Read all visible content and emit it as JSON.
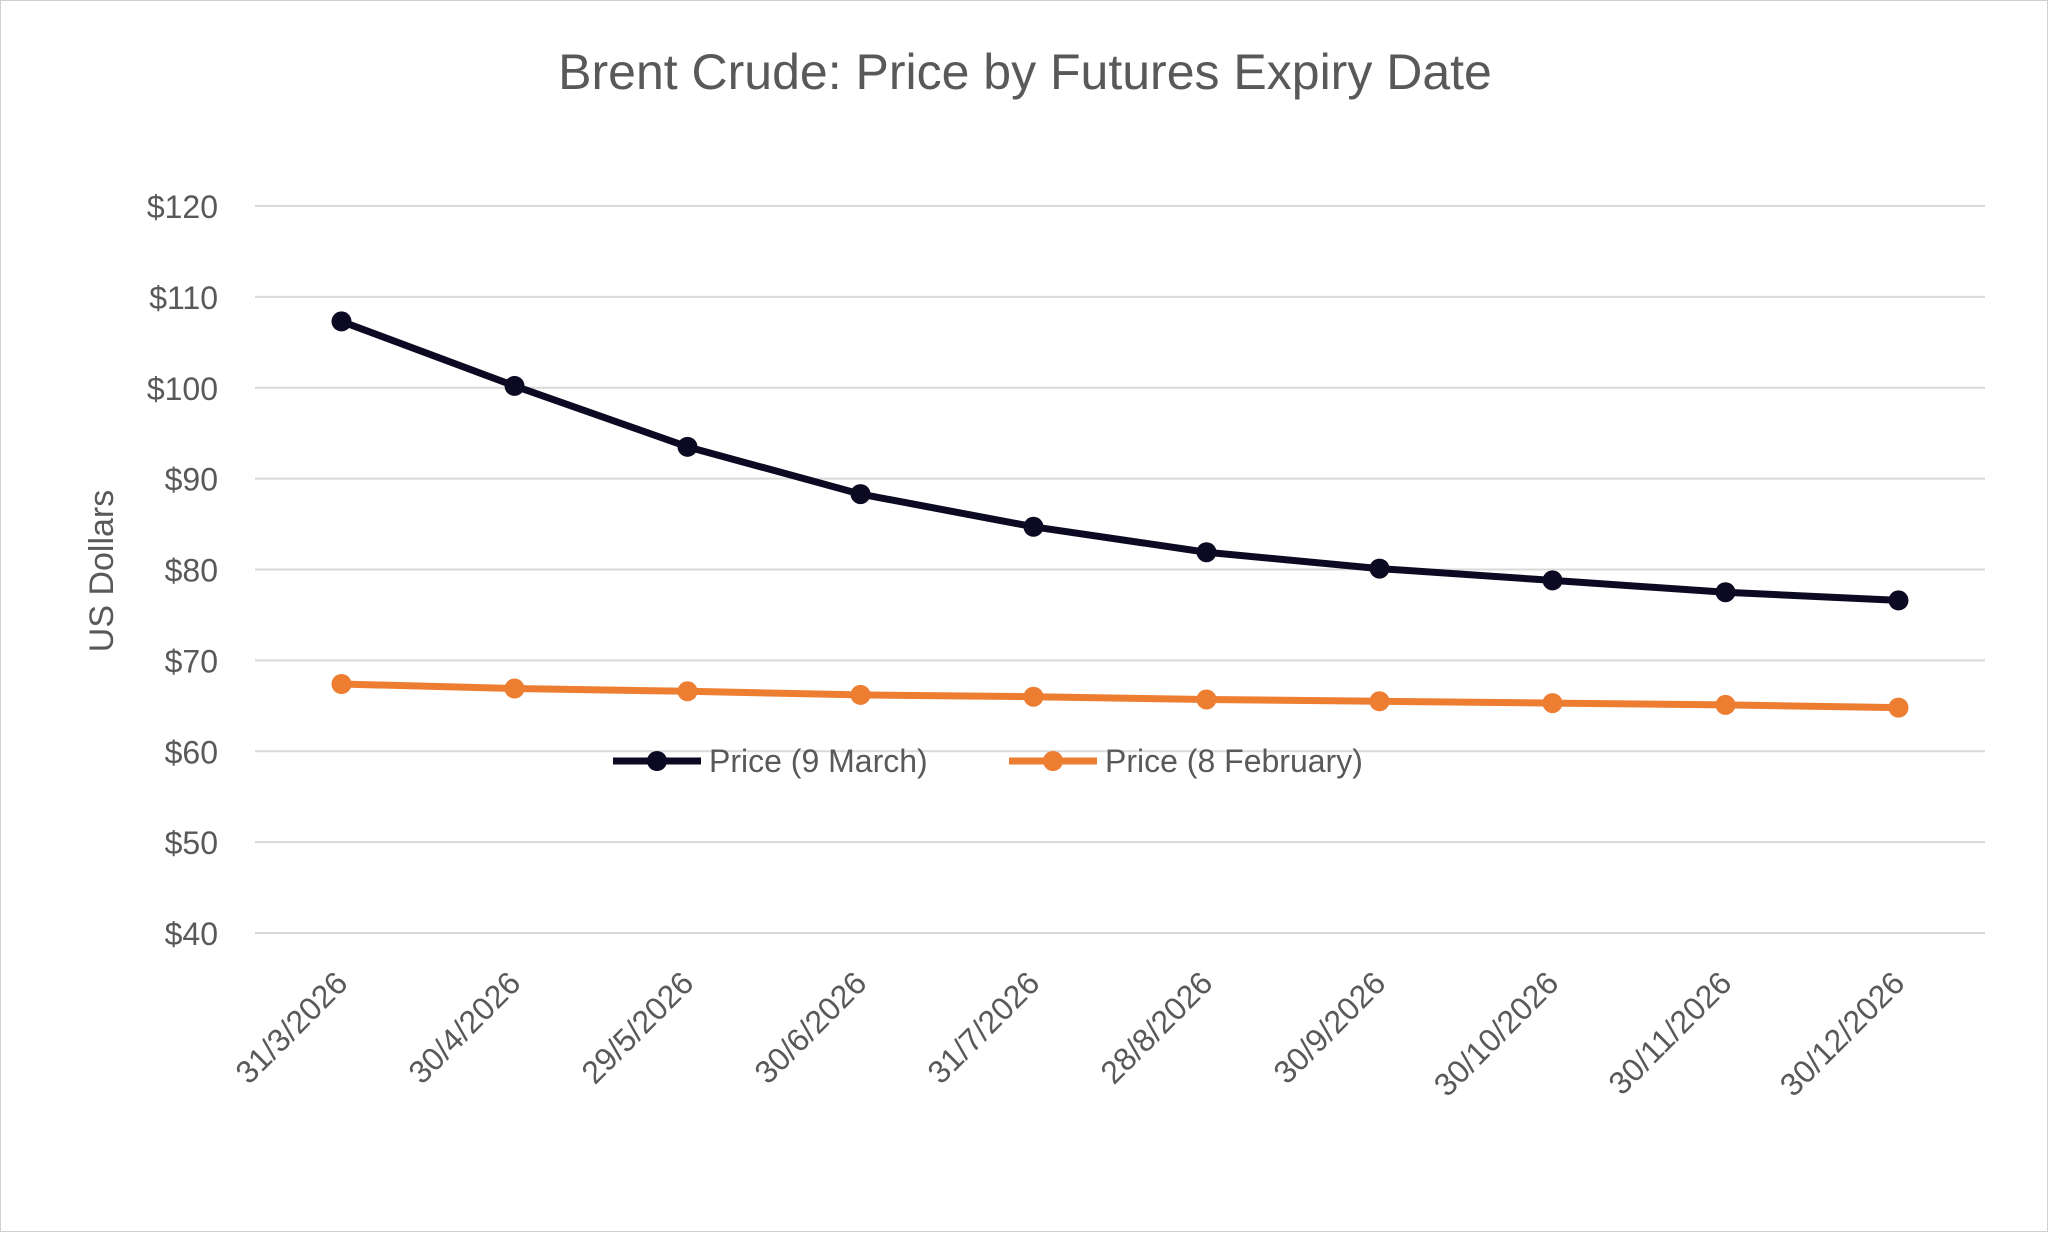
{
  "chart_data": {
    "type": "line",
    "title": "Brent Crude: Price by Futures Expiry Date",
    "xlabel": "",
    "ylabel": "US Dollars",
    "categories": [
      "31/3/2026",
      "30/4/2026",
      "29/5/2026",
      "30/6/2026",
      "31/7/2026",
      "28/8/2026",
      "30/9/2026",
      "30/10/2026",
      "30/11/2026",
      "30/12/2026"
    ],
    "ylim": [
      40,
      120
    ],
    "yticks": [
      40,
      50,
      60,
      70,
      80,
      90,
      100,
      110,
      120
    ],
    "ytick_labels": [
      "$40",
      "$50",
      "$60",
      "$70",
      "$80",
      "$90",
      "$100",
      "$110",
      "$120"
    ],
    "grid": true,
    "legend_position": "inside-bottom-center",
    "series": [
      {
        "name": "Price (9 March)",
        "color": "#0c0a22",
        "values": [
          107.3,
          100.2,
          93.5,
          88.3,
          84.7,
          81.9,
          80.1,
          78.8,
          77.5,
          76.6
        ]
      },
      {
        "name": "Price (8 February)",
        "color": "#ed7d31",
        "values": [
          67.4,
          66.9,
          66.6,
          66.2,
          66.0,
          65.7,
          65.5,
          65.3,
          65.1,
          64.8
        ]
      }
    ]
  }
}
